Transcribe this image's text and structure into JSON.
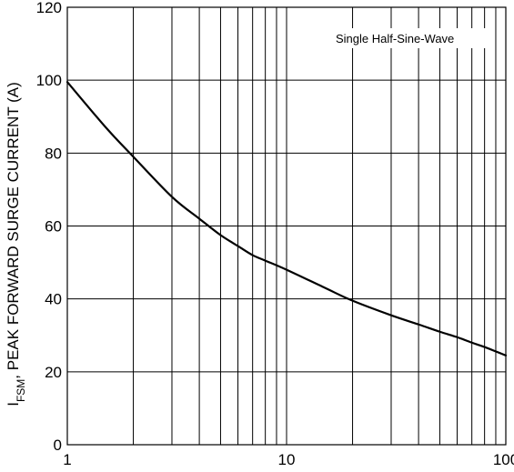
{
  "chart_data": {
    "type": "line",
    "title": "",
    "xscale": "log",
    "xlim": [
      1,
      100
    ],
    "ylim": [
      0,
      120
    ],
    "x_tick_labels": [
      "1",
      "10",
      "100"
    ],
    "y_tick_labels": [
      "0",
      "20",
      "40",
      "60",
      "80",
      "100",
      "120"
    ],
    "y_ticks": [
      0,
      20,
      40,
      60,
      80,
      100,
      120
    ],
    "x_ticks": [
      1,
      10,
      100
    ],
    "ylabel_sub": "FSM",
    "ylabel_prefix": "I",
    "ylabel_rest": ", PEAK FORWARD SURGE CURRENT (A)",
    "annotation": "Single Half-Sine-Wave",
    "grid": true,
    "series": [
      {
        "x": [
          1,
          1.5,
          2,
          3,
          4,
          5,
          6,
          7,
          8,
          10,
          15,
          20,
          30,
          40,
          50,
          60,
          70,
          80,
          100
        ],
        "y": [
          99.5,
          87,
          79,
          68,
          62,
          57.5,
          54.5,
          52,
          50.5,
          48,
          43,
          39.5,
          35.5,
          33,
          31,
          29.5,
          28,
          26.8,
          24.5
        ]
      }
    ],
    "colors": {
      "line": "#000000",
      "grid": "#000000"
    }
  }
}
